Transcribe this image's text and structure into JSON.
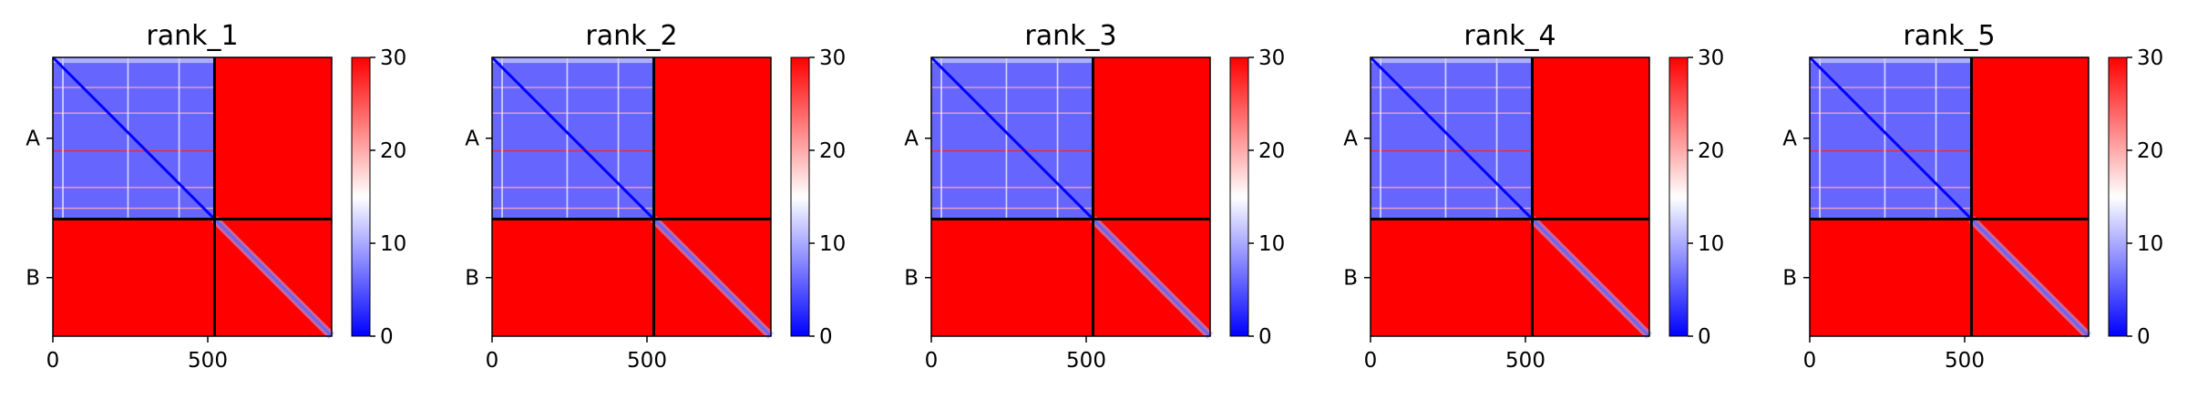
{
  "figure": {
    "colormap": {
      "low": "#0000ff",
      "mid": "#ffffff",
      "high": "#ff0000"
    },
    "divider_color": "#000000"
  },
  "chart_data": [
    {
      "type": "heatmap",
      "title": "rank_1",
      "xlabel": "",
      "ylabel": "",
      "xlim": [
        0,
        900
      ],
      "x_ticks": [
        0,
        500
      ],
      "y_tick_labels": [
        "A",
        "B"
      ],
      "chain_lengths": [
        522,
        378
      ],
      "chain_boundary": 522,
      "colorbar": {
        "range": [
          0,
          30
        ],
        "ticks": [
          0,
          10,
          20,
          30
        ]
      },
      "matrix": {
        "intra_chain": "low",
        "inter_chain": "high (saturated)",
        "diagonal": "0"
      }
    },
    {
      "type": "heatmap",
      "title": "rank_2",
      "xlabel": "",
      "ylabel": "",
      "xlim": [
        0,
        900
      ],
      "x_ticks": [
        0,
        500
      ],
      "y_tick_labels": [
        "A",
        "B"
      ],
      "chain_lengths": [
        522,
        378
      ],
      "chain_boundary": 522,
      "colorbar": {
        "range": [
          0,
          30
        ],
        "ticks": [
          0,
          10,
          20,
          30
        ]
      },
      "matrix": {
        "intra_chain": "low",
        "inter_chain": "high (saturated)",
        "diagonal": "0"
      }
    },
    {
      "type": "heatmap",
      "title": "rank_3",
      "xlabel": "",
      "ylabel": "",
      "xlim": [
        0,
        900
      ],
      "x_ticks": [
        0,
        500
      ],
      "y_tick_labels": [
        "A",
        "B"
      ],
      "chain_lengths": [
        522,
        378
      ],
      "chain_boundary": 522,
      "colorbar": {
        "range": [
          0,
          30
        ],
        "ticks": [
          0,
          10,
          20,
          30
        ]
      },
      "matrix": {
        "intra_chain": "low",
        "inter_chain": "high (saturated)",
        "diagonal": "0"
      }
    },
    {
      "type": "heatmap",
      "title": "rank_4",
      "xlabel": "",
      "ylabel": "",
      "xlim": [
        0,
        900
      ],
      "x_ticks": [
        0,
        500
      ],
      "y_tick_labels": [
        "A",
        "B"
      ],
      "chain_lengths": [
        522,
        378
      ],
      "chain_boundary": 522,
      "colorbar": {
        "range": [
          0,
          30
        ],
        "ticks": [
          0,
          10,
          20,
          30
        ]
      },
      "matrix": {
        "intra_chain": "low",
        "inter_chain": "high (saturated)",
        "diagonal": "0"
      }
    },
    {
      "type": "heatmap",
      "title": "rank_5",
      "xlabel": "",
      "ylabel": "",
      "xlim": [
        0,
        900
      ],
      "x_ticks": [
        0,
        500
      ],
      "y_tick_labels": [
        "A",
        "B"
      ],
      "chain_lengths": [
        522,
        378
      ],
      "chain_boundary": 522,
      "colorbar": {
        "range": [
          0,
          30
        ],
        "ticks": [
          0,
          10,
          20,
          30
        ]
      },
      "matrix": {
        "intra_chain": "low",
        "inter_chain": "high (saturated)",
        "diagonal": "0"
      }
    }
  ]
}
